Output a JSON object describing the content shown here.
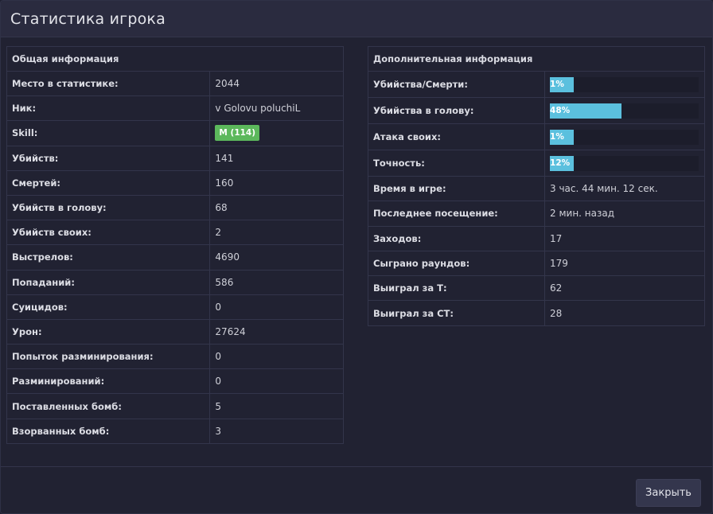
{
  "modal": {
    "title": "Статистика игрока",
    "close_label": "Закрыть"
  },
  "general": {
    "header": "Общая информация",
    "rows": [
      {
        "label": "Место в статистике:",
        "value": "2044"
      },
      {
        "label": "Ник:",
        "value": "v Golovu poluchiL"
      },
      {
        "label": "Skill:",
        "badge": "M (114)",
        "badge_color": "#5cb85c"
      },
      {
        "label": "Убийств:",
        "value": "141"
      },
      {
        "label": "Смертей:",
        "value": "160"
      },
      {
        "label": "Убийств в голову:",
        "value": "68"
      },
      {
        "label": "Убийств своих:",
        "value": "2"
      },
      {
        "label": "Выстрелов:",
        "value": "4690"
      },
      {
        "label": "Попаданий:",
        "value": "586"
      },
      {
        "label": "Суицидов:",
        "value": "0"
      },
      {
        "label": "Урон:",
        "value": "27624"
      },
      {
        "label": "Попыток разминирования:",
        "value": "0"
      },
      {
        "label": "Разминирований:",
        "value": "0"
      },
      {
        "label": "Поставленных бомб:",
        "value": "5"
      },
      {
        "label": "Взорванных бомб:",
        "value": "3"
      }
    ]
  },
  "additional": {
    "header": "Дополнительная информация",
    "bar_color": "#5bc0de",
    "bars": [
      {
        "label": "Убийства/Смерти:",
        "text": "1%",
        "percent": 1
      },
      {
        "label": "Убийства в голову:",
        "text": "48%",
        "percent": 48
      },
      {
        "label": "Атака своих:",
        "text": "1%",
        "percent": 1
      },
      {
        "label": "Точность:",
        "text": "12%",
        "percent": 12
      }
    ],
    "rows": [
      {
        "label": "Время в игре:",
        "value": "3 час. 44 мин. 12 сек."
      },
      {
        "label": "Последнее посещение:",
        "value": "2 мин. назад"
      },
      {
        "label": "Заходов:",
        "value": "17"
      },
      {
        "label": "Сыграно раундов:",
        "value": "179"
      },
      {
        "label": "Выиграл за Т:",
        "value": "62"
      },
      {
        "label": "Выиграл за СТ:",
        "value": "28"
      }
    ]
  }
}
